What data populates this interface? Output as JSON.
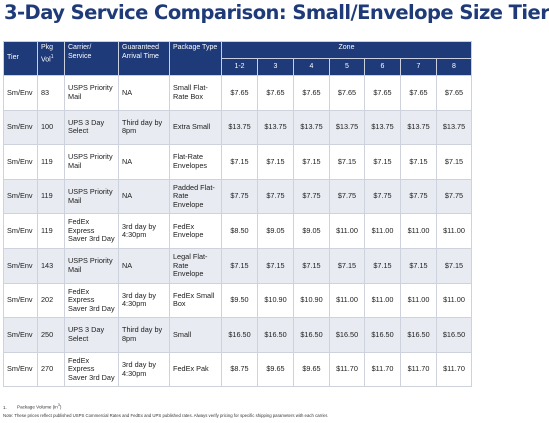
{
  "title": "3-Day Service Comparison: Small/Envelope Size Tier",
  "headers": {
    "tier": "Tier",
    "pkg_vol": "Pkg Vol",
    "pkg_vol_sup": "1",
    "carrier": "Carrier/ Service",
    "arrival": "Guaranteed Arrival Time",
    "package_type": "Package Type",
    "zone": "Zone",
    "zones": [
      "1-2",
      "3",
      "4",
      "5",
      "6",
      "7",
      "8"
    ]
  },
  "rows": [
    {
      "tier": "Sm/Env",
      "vol": "83",
      "carrier": "USPS Priority Mail",
      "arrival": "NA",
      "package": "Small Flat-Rate Box",
      "prices": [
        "$7.65",
        "$7.65",
        "$7.65",
        "$7.65",
        "$7.65",
        "$7.65",
        "$7.65"
      ]
    },
    {
      "tier": "Sm/Env",
      "vol": "100",
      "carrier": "UPS 3 Day Select",
      "arrival": "Third day by 8pm",
      "package": "Extra Small",
      "prices": [
        "$13.75",
        "$13.75",
        "$13.75",
        "$13.75",
        "$13.75",
        "$13.75",
        "$13.75"
      ]
    },
    {
      "tier": "Sm/Env",
      "vol": "119",
      "carrier": "USPS Priority Mail",
      "arrival": "NA",
      "package": "Flat-Rate Envelopes",
      "prices": [
        "$7.15",
        "$7.15",
        "$7.15",
        "$7.15",
        "$7.15",
        "$7.15",
        "$7.15"
      ]
    },
    {
      "tier": "Sm/Env",
      "vol": "119",
      "carrier": "USPS Priority Mail",
      "arrival": "NA",
      "package": "Padded Flat-Rate Envelope",
      "prices": [
        "$7.75",
        "$7.75",
        "$7.75",
        "$7.75",
        "$7.75",
        "$7.75",
        "$7.75"
      ]
    },
    {
      "tier": "Sm/Env",
      "vol": "119",
      "carrier": "FedEx Express Saver 3rd Day",
      "arrival": "3rd day by 4:30pm",
      "package": "FedEx Envelope",
      "prices": [
        "$8.50",
        "$9.05",
        "$9.05",
        "$11.00",
        "$11.00",
        "$11.00",
        "$11.00"
      ]
    },
    {
      "tier": "Sm/Env",
      "vol": "143",
      "carrier": "USPS Priority Mail",
      "arrival": "NA",
      "package": "Legal Flat-Rate Envelope",
      "prices": [
        "$7.15",
        "$7.15",
        "$7.15",
        "$7.15",
        "$7.15",
        "$7.15",
        "$7.15"
      ]
    },
    {
      "tier": "Sm/Env",
      "vol": "202",
      "carrier": "FedEx Express Saver 3rd Day",
      "arrival": "3rd day by 4:30pm",
      "package": "FedEx Small Box",
      "prices": [
        "$9.50",
        "$10.90",
        "$10.90",
        "$11.00",
        "$11.00",
        "$11.00",
        "$11.00"
      ]
    },
    {
      "tier": "Sm/Env",
      "vol": "250",
      "carrier": "UPS 3 Day Select",
      "arrival": "Third day by 8pm",
      "package": "Small",
      "prices": [
        "$16.50",
        "$16.50",
        "$16.50",
        "$16.50",
        "$16.50",
        "$16.50",
        "$16.50"
      ]
    },
    {
      "tier": "Sm/Env",
      "vol": "270",
      "carrier": "FedEx Express Saver 3rd Day",
      "arrival": "3rd day by 4:30pm",
      "package": "FedEx Pak",
      "prices": [
        "$8.75",
        "$9.65",
        "$9.65",
        "$11.70",
        "$11.70",
        "$11.70",
        "$11.70"
      ]
    }
  ],
  "footnote": {
    "index": "1.",
    "text": "Package Volume (in",
    "sup": "3",
    "close": ")"
  },
  "note": "Note: These prices reflect published USPS Commercial Rates and FedEx and UPS published rates. Always verify pricing for specific shipping parameters with each carrier."
}
